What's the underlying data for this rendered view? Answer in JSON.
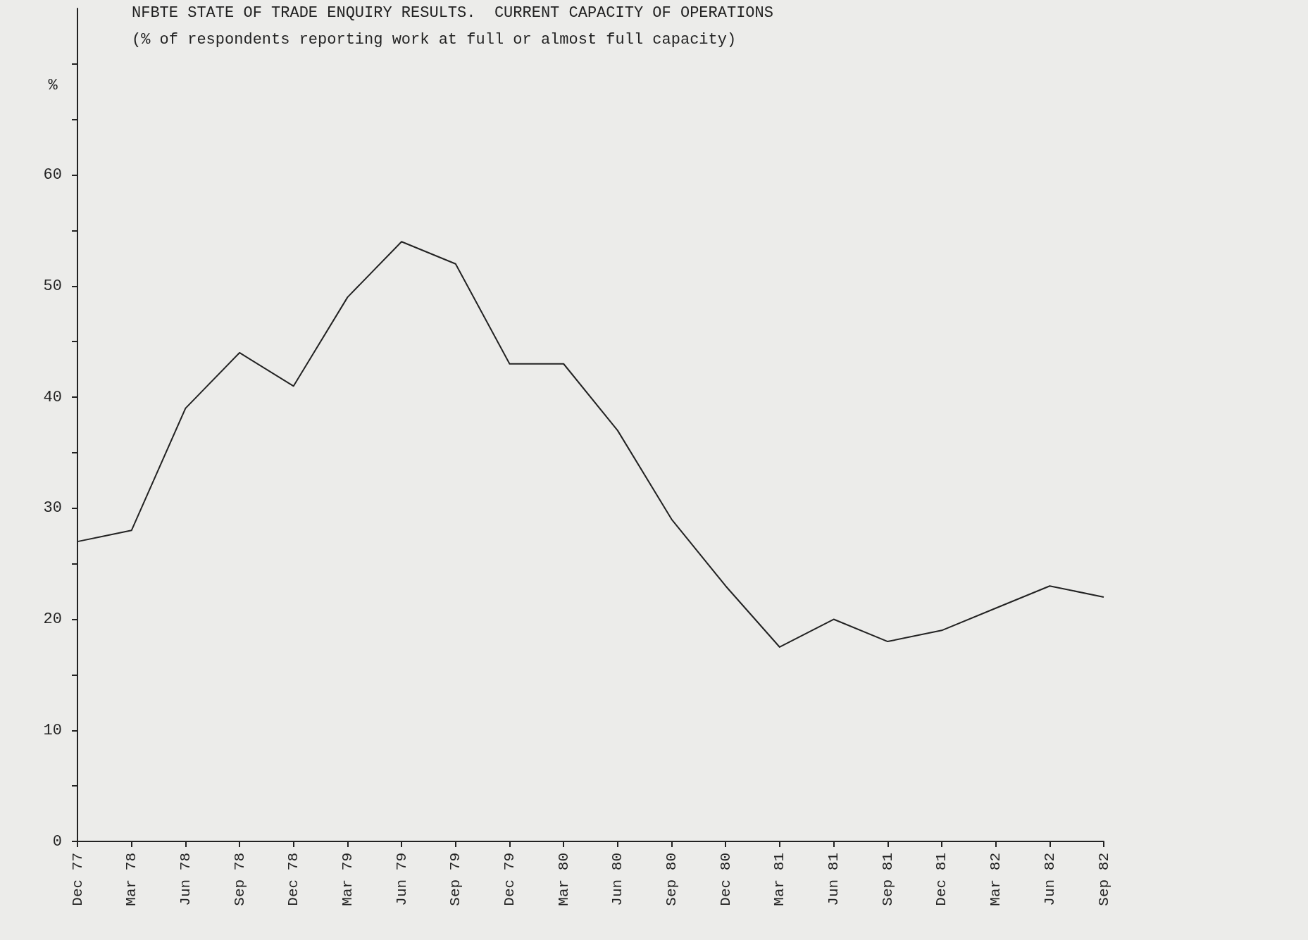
{
  "chart_data": {
    "type": "line",
    "title": "NFBTE STATE OF TRADE ENQUIRY RESULTS.  CURRENT CAPACITY OF OPERATIONS",
    "subtitle": "(% of respondents reporting work at full or almost full capacity)",
    "ylabel": "%",
    "categories": [
      "Dec 77",
      "Mar 78",
      "Jun 78",
      "Sep 78",
      "Dec 78",
      "Mar 79",
      "Jun 79",
      "Sep 79",
      "Dec 79",
      "Mar 80",
      "Jun 80",
      "Sep 80",
      "Dec 80",
      "Mar 81",
      "Jun 81",
      "Sep 81",
      "Dec 81",
      "Mar 82",
      "Jun 82",
      "Sep 82"
    ],
    "series": [
      {
        "color": "#222222",
        "values": [
          27,
          28,
          39,
          44,
          41,
          49,
          54,
          52,
          43,
          43,
          37,
          29,
          23,
          17.5,
          20,
          18,
          19,
          21,
          23,
          22
        ]
      }
    ],
    "ylim": [
      0,
      75
    ],
    "yticks": [
      0,
      {
        "value": 5,
        "label": null
      },
      10,
      {
        "value": 15,
        "label": null
      },
      20,
      {
        "value": 25,
        "label": null
      },
      30,
      {
        "value": 35,
        "label": null
      },
      40,
      {
        "value": 45,
        "label": null
      },
      50,
      {
        "value": 55,
        "label": null
      },
      60,
      {
        "value": 65,
        "label": null
      },
      {
        "value": 70,
        "label": null
      }
    ],
    "grid": false,
    "marker": "none",
    "line_style": "solid"
  }
}
